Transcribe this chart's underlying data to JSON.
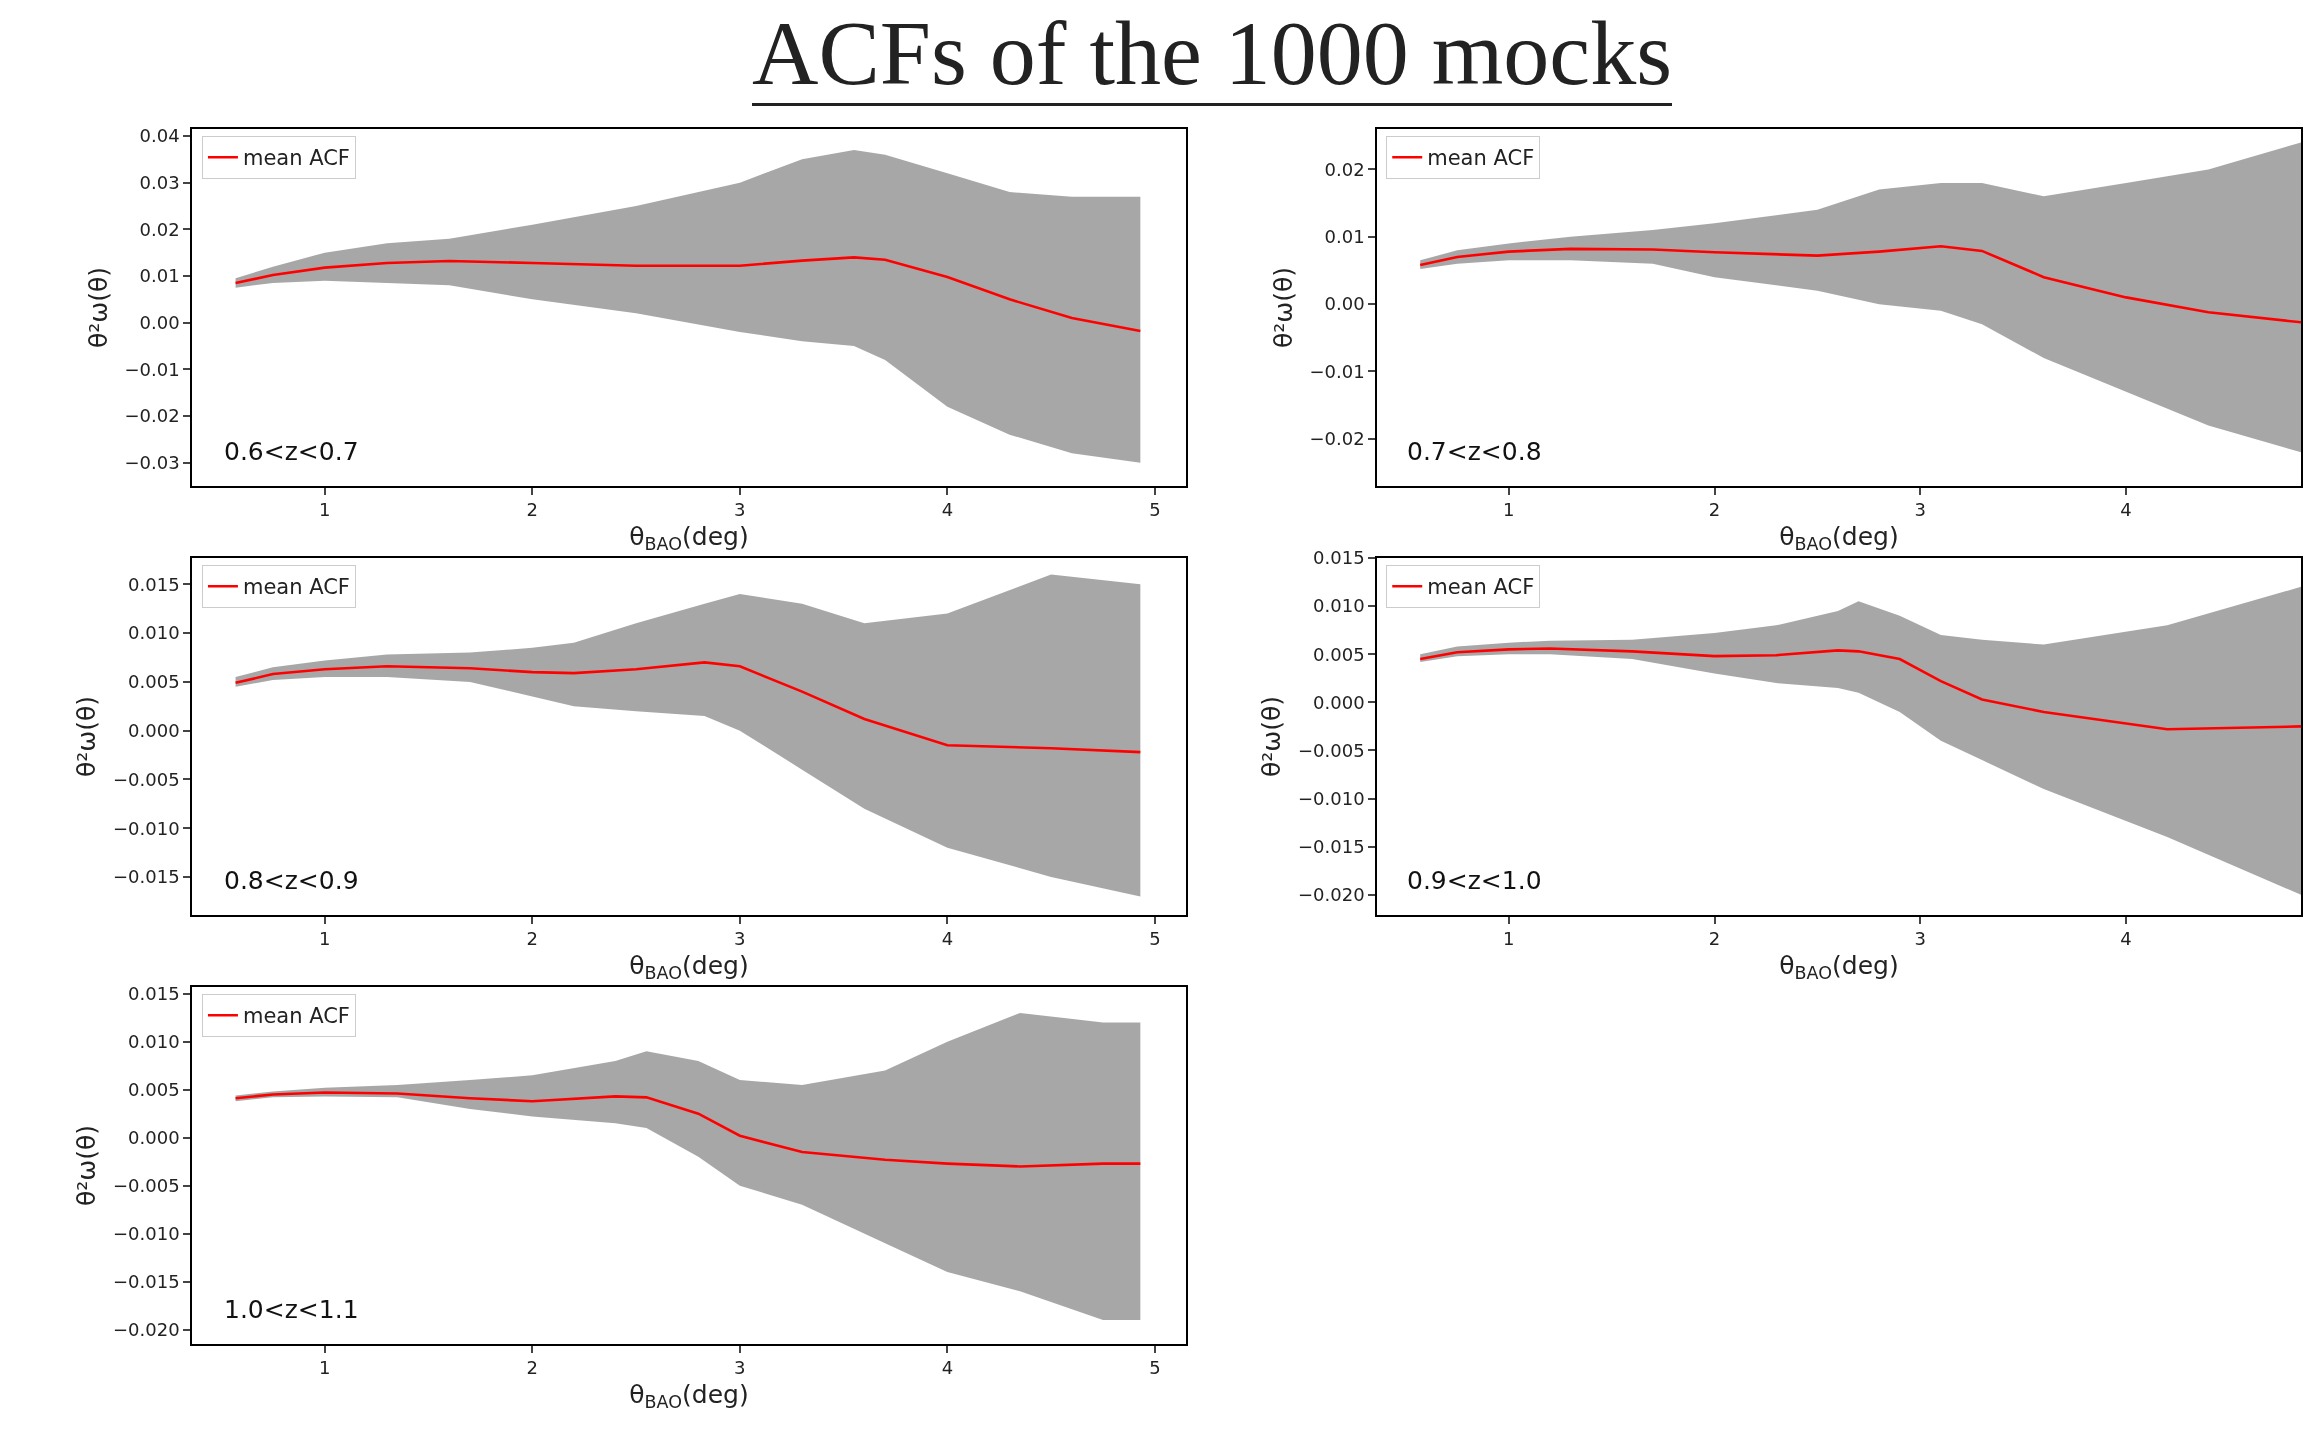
{
  "chart_data": [
    {
      "type": "line",
      "title": "ACFs of the 1000 mocks",
      "xlabel": "θ$_{BAO}$(deg)",
      "ylabel": "θ²ω(θ)",
      "annotations": [
        "0.6<z<0.7"
      ],
      "legend": "top left",
      "grid": false,
      "xlim": [
        0.36,
        5.15
      ],
      "xticks": [
        1,
        2,
        3,
        4,
        5
      ],
      "ylim": [
        -0.035,
        0.0415
      ],
      "yticks": [
        {
          "value": -0.03,
          "label": "−0.03"
        },
        {
          "value": -0.02,
          "label": "−0.02"
        },
        {
          "value": -0.01,
          "label": "−0.01"
        },
        {
          "value": 0,
          "label": "0.00"
        },
        {
          "value": 0.01,
          "label": "0.01"
        },
        {
          "value": 0.02,
          "label": "0.02"
        },
        {
          "value": 0.03,
          "label": "0.03"
        },
        {
          "value": 0.04,
          "label": "0.04"
        }
      ],
      "series": [
        {
          "name": "mean ACF",
          "color": "#ff0000",
          "x": [
            0.57,
            0.75,
            1.0,
            1.3,
            1.6,
            2.0,
            2.5,
            3.0,
            3.3,
            3.55,
            3.7,
            4.0,
            4.3,
            4.6,
            4.93
          ],
          "values": [
            0.0085,
            0.0102,
            0.0118,
            0.0128,
            0.0132,
            0.0128,
            0.0122,
            0.0122,
            0.0133,
            0.014,
            0.0135,
            0.0098,
            0.005,
            0.001,
            -0.0018
          ],
          "lower": [
            0.0075,
            0.0085,
            0.009,
            0.0085,
            0.008,
            0.005,
            0.002,
            -0.002,
            -0.004,
            -0.005,
            -0.008,
            -0.018,
            -0.024,
            -0.028,
            -0.03
          ],
          "upper": [
            0.0095,
            0.012,
            0.015,
            0.017,
            0.018,
            0.021,
            0.025,
            0.03,
            0.035,
            0.037,
            0.036,
            0.032,
            0.028,
            0.027,
            0.027
          ]
        }
      ]
    },
    {
      "type": "line",
      "xlabel": "θ$_{BAO}$(deg)",
      "ylabel": "θ²ω(θ)",
      "annotations": [
        "0.7<z<0.8"
      ],
      "legend": "top left",
      "grid": false,
      "xlim": [
        0.36,
        4.85
      ],
      "xticks": [
        1,
        2,
        3,
        4
      ],
      "ylim": [
        -0.027,
        0.026
      ],
      "yticks": [
        {
          "value": -0.02,
          "label": "−0.02"
        },
        {
          "value": -0.01,
          "label": "−0.01"
        },
        {
          "value": 0,
          "label": "0.00"
        },
        {
          "value": 0.01,
          "label": "0.01"
        },
        {
          "value": 0.02,
          "label": "0.02"
        }
      ],
      "series": [
        {
          "name": "mean ACF",
          "color": "#ff0000",
          "x": [
            0.57,
            0.75,
            1.0,
            1.3,
            1.7,
            2.0,
            2.5,
            2.8,
            3.1,
            3.3,
            3.6,
            4.0,
            4.4,
            4.85
          ],
          "values": [
            0.0058,
            0.007,
            0.0078,
            0.0082,
            0.0081,
            0.0077,
            0.0072,
            0.0078,
            0.0086,
            0.0079,
            0.004,
            0.001,
            -0.0012,
            -0.0027
          ],
          "lower": [
            0.0052,
            0.006,
            0.0065,
            0.0065,
            0.006,
            0.004,
            0.002,
            0.0,
            -0.001,
            -0.003,
            -0.008,
            -0.013,
            -0.018,
            -0.022
          ],
          "upper": [
            0.0065,
            0.008,
            0.009,
            0.01,
            0.011,
            0.012,
            0.014,
            0.017,
            0.018,
            0.018,
            0.016,
            0.018,
            0.02,
            0.024
          ]
        }
      ]
    },
    {
      "type": "line",
      "xlabel": "θ$_{BAO}$(deg)",
      "ylabel": "θ²ω(θ)",
      "annotations": [
        "0.8<z<0.9"
      ],
      "legend": "top left",
      "grid": false,
      "xlim": [
        0.36,
        5.15
      ],
      "xticks": [
        1,
        2,
        3,
        4,
        5
      ],
      "ylim": [
        -0.0189,
        0.0177
      ],
      "yticks": [
        {
          "value": -0.015,
          "label": "−0.015"
        },
        {
          "value": -0.01,
          "label": "−0.010"
        },
        {
          "value": -0.005,
          "label": "−0.005"
        },
        {
          "value": 0,
          "label": "0.000"
        },
        {
          "value": 0.005,
          "label": "0.005"
        },
        {
          "value": 0.01,
          "label": "0.010"
        },
        {
          "value": 0.015,
          "label": "0.015"
        }
      ],
      "series": [
        {
          "name": "mean ACF",
          "color": "#ff0000",
          "x": [
            0.57,
            0.75,
            1.0,
            1.3,
            1.7,
            2.0,
            2.2,
            2.5,
            2.83,
            3.0,
            3.3,
            3.6,
            4.0,
            4.5,
            4.93
          ],
          "values": [
            0.0049,
            0.0058,
            0.0063,
            0.0066,
            0.0064,
            0.006,
            0.0059,
            0.0063,
            0.007,
            0.0066,
            0.004,
            0.0012,
            -0.0015,
            -0.0018,
            -0.0022
          ],
          "lower": [
            0.0045,
            0.0052,
            0.0055,
            0.0055,
            0.005,
            0.0035,
            0.0025,
            0.002,
            0.0015,
            0.0,
            -0.004,
            -0.008,
            -0.012,
            -0.015,
            -0.017
          ],
          "upper": [
            0.0055,
            0.0065,
            0.0072,
            0.0078,
            0.008,
            0.0085,
            0.009,
            0.011,
            0.013,
            0.014,
            0.013,
            0.011,
            0.012,
            0.016,
            0.015
          ]
        }
      ]
    },
    {
      "type": "line",
      "xlabel": "θ$_{BAO}$(deg)",
      "ylabel": "θ²ω(θ)",
      "annotations": [
        "0.9<z<1.0"
      ],
      "legend": "top left",
      "grid": false,
      "xlim": [
        0.36,
        4.85
      ],
      "xticks": [
        1,
        2,
        3,
        4
      ],
      "ylim": [
        -0.0221,
        0.015
      ],
      "yticks": [
        {
          "value": -0.02,
          "label": "−0.020"
        },
        {
          "value": -0.015,
          "label": "−0.015"
        },
        {
          "value": -0.01,
          "label": "−0.010"
        },
        {
          "value": -0.005,
          "label": "−0.005"
        },
        {
          "value": 0,
          "label": "0.000"
        },
        {
          "value": 0.005,
          "label": "0.005"
        },
        {
          "value": 0.01,
          "label": "0.010"
        },
        {
          "value": 0.015,
          "label": "0.015"
        }
      ],
      "series": [
        {
          "name": "mean ACF",
          "color": "#ff0000",
          "x": [
            0.57,
            0.75,
            1.0,
            1.2,
            1.6,
            2.0,
            2.3,
            2.6,
            2.7,
            2.9,
            3.1,
            3.3,
            3.6,
            4.2,
            4.85
          ],
          "values": [
            0.0045,
            0.0052,
            0.0055,
            0.0056,
            0.0053,
            0.0048,
            0.0049,
            0.0054,
            0.0053,
            0.0045,
            0.0022,
            0.0003,
            -0.001,
            -0.0028,
            -0.0025
          ],
          "lower": [
            0.0042,
            0.0048,
            0.005,
            0.005,
            0.0045,
            0.003,
            0.002,
            0.0015,
            0.001,
            -0.001,
            -0.004,
            -0.006,
            -0.009,
            -0.014,
            -0.02
          ],
          "upper": [
            0.005,
            0.0058,
            0.0062,
            0.0064,
            0.0065,
            0.0072,
            0.008,
            0.0095,
            0.0105,
            0.009,
            0.007,
            0.0065,
            0.006,
            0.008,
            0.012
          ]
        }
      ]
    },
    {
      "type": "line",
      "xlabel": "θ$_{BAO}$(deg)",
      "ylabel": "θ²ω(θ)",
      "annotations": [
        "1.0<z<1.1"
      ],
      "legend": "top left",
      "grid": false,
      "xlim": [
        0.36,
        5.15
      ],
      "xticks": [
        1,
        2,
        3,
        4,
        5
      ],
      "ylim": [
        -0.0215,
        0.0157
      ],
      "yticks": [
        {
          "value": -0.02,
          "label": "−0.020"
        },
        {
          "value": -0.015,
          "label": "−0.015"
        },
        {
          "value": -0.01,
          "label": "−0.010"
        },
        {
          "value": -0.005,
          "label": "−0.005"
        },
        {
          "value": 0,
          "label": "0.000"
        },
        {
          "value": 0.005,
          "label": "0.005"
        },
        {
          "value": 0.01,
          "label": "0.010"
        },
        {
          "value": 0.015,
          "label": "0.015"
        }
      ],
      "series": [
        {
          "name": "mean ACF",
          "color": "#ff0000",
          "x": [
            0.57,
            0.75,
            1.0,
            1.35,
            1.7,
            2.0,
            2.4,
            2.55,
            2.8,
            3.0,
            3.3,
            3.7,
            4.0,
            4.35,
            4.75,
            4.93
          ],
          "values": [
            0.0041,
            0.0045,
            0.0047,
            0.0046,
            0.0041,
            0.0038,
            0.0043,
            0.0042,
            0.0025,
            0.0002,
            -0.0015,
            -0.0023,
            -0.0027,
            -0.003,
            -0.0027,
            -0.0027
          ],
          "lower": [
            0.0038,
            0.0042,
            0.0043,
            0.0042,
            0.003,
            0.0022,
            0.0015,
            0.001,
            -0.002,
            -0.005,
            -0.007,
            -0.011,
            -0.014,
            -0.016,
            -0.019,
            -0.019
          ],
          "upper": [
            0.0044,
            0.0048,
            0.0052,
            0.0055,
            0.006,
            0.0065,
            0.008,
            0.009,
            0.008,
            0.006,
            0.0055,
            0.007,
            0.01,
            0.013,
            0.012,
            0.012
          ]
        }
      ]
    }
  ]
}
